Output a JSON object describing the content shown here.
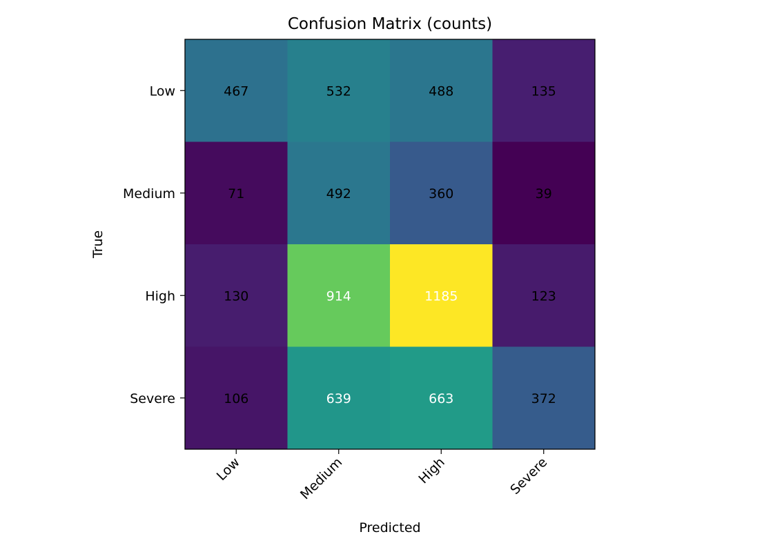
{
  "chart_data": {
    "type": "heatmap",
    "title": "Confusion Matrix (counts)",
    "xlabel": "Predicted",
    "ylabel": "True",
    "x_categories": [
      "Low",
      "Medium",
      "High",
      "Severe"
    ],
    "y_categories": [
      "Low",
      "Medium",
      "High",
      "Severe"
    ],
    "values": [
      [
        467,
        532,
        488,
        135
      ],
      [
        71,
        492,
        360,
        39
      ],
      [
        130,
        914,
        1185,
        123
      ],
      [
        106,
        639,
        663,
        372
      ]
    ],
    "colormap": "viridis",
    "value_range": [
      39,
      1185
    ],
    "text_colors": {
      "dark": "#000000",
      "light": "#ffffff"
    },
    "grid": false
  }
}
